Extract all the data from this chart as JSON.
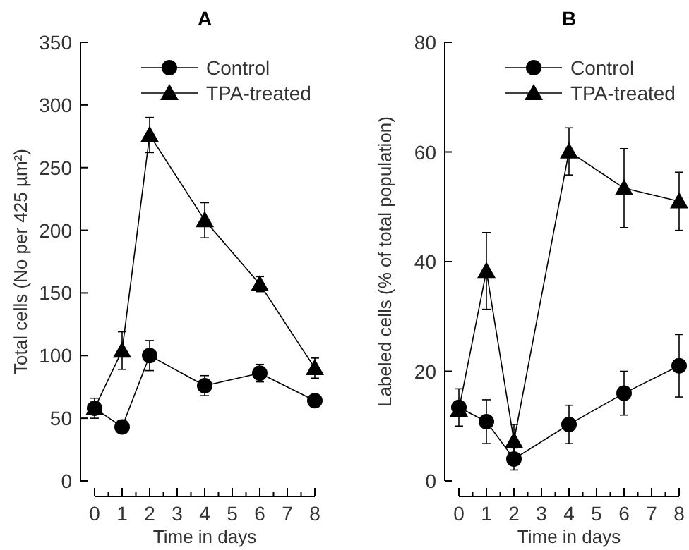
{
  "chart_data": [
    {
      "type": "line",
      "title": "A",
      "xlabel": "Time in days",
      "ylabel": "Total cells (No per 425 µm²)",
      "x": [
        0,
        1,
        2,
        4,
        6,
        8
      ],
      "xlim": [
        0,
        8
      ],
      "xticks": [
        0,
        1,
        2,
        3,
        4,
        5,
        6,
        7,
        8
      ],
      "ylim": [
        0,
        350
      ],
      "yticks": [
        0,
        50,
        100,
        150,
        200,
        250,
        300,
        350
      ],
      "legend": "top",
      "line_style": "solid",
      "grid": false,
      "series": [
        {
          "name": "Control",
          "color": "#000000",
          "marker": "circle",
          "values": [
            58,
            43,
            100,
            76,
            86,
            64
          ],
          "errors": [
            8,
            5,
            12,
            8,
            7,
            4
          ]
        },
        {
          "name": "TPA-treated",
          "color": "#000000",
          "marker": "triangle",
          "values": [
            58,
            104,
            276,
            208,
            157,
            90
          ],
          "errors": [
            null,
            15,
            14,
            14,
            6,
            8
          ]
        }
      ]
    },
    {
      "type": "line",
      "title": "B",
      "xlabel": "Time in days",
      "ylabel": "Labeled cells (% of total population)",
      "x": [
        0,
        1,
        2,
        4,
        6,
        8
      ],
      "xlim": [
        0,
        8
      ],
      "xticks": [
        0,
        1,
        2,
        3,
        4,
        5,
        6,
        7,
        8
      ],
      "ylim": [
        0,
        80
      ],
      "yticks": [
        0,
        20,
        40,
        60,
        80
      ],
      "legend": "top",
      "line_style": "solid",
      "grid": false,
      "series": [
        {
          "name": "Control",
          "color": "#000000",
          "marker": "circle",
          "values": [
            13.4,
            10.8,
            4,
            10.3,
            16,
            21
          ],
          "errors": [
            3.4,
            4,
            2,
            3.5,
            4,
            5.7
          ]
        },
        {
          "name": "TPA-treated",
          "color": "#000000",
          "marker": "triangle",
          "values": [
            13,
            38.3,
            7.3,
            60.1,
            53.4,
            51
          ],
          "errors": [
            null,
            7,
            3,
            4.3,
            7.2,
            5.3
          ]
        }
      ]
    }
  ]
}
